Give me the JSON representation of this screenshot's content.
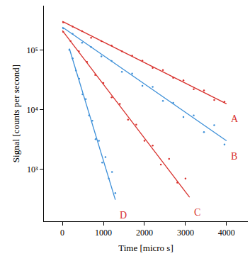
{
  "chart_data": {
    "type": "scatter",
    "x_label": "Time [micro s]",
    "y_label": "Signal [counts per second]",
    "log": "y",
    "grid": false,
    "xlim": [
      -450,
      4520
    ],
    "ylim": [
      135,
      550000
    ],
    "xticks": [
      0,
      1000,
      2000,
      3000,
      4000
    ],
    "yticks": [
      {
        "value": 1000,
        "label": "10³"
      },
      {
        "value": 10000,
        "label": "10⁴"
      },
      {
        "value": 100000,
        "label": "10⁵"
      }
    ],
    "series": [
      {
        "name": "A",
        "color": "#d8302c",
        "marker": "dot",
        "x": [
          20,
          250,
          480,
          700,
          950,
          1200,
          1450,
          1700,
          1950,
          2200,
          2450,
          2700,
          2950,
          3200,
          3450,
          3700,
          3950
        ],
        "values": [
          290000,
          245000,
          205000,
          160000,
          140000,
          118000,
          95000,
          80000,
          66000,
          50000,
          46000,
          34000,
          31000,
          22000,
          21000,
          14500,
          13500
        ],
        "fit": {
          "x": [
            0,
            4000
          ],
          "values": [
            300000,
            12500
          ]
        }
      },
      {
        "name": "B",
        "color": "#3c8fd8",
        "marker": "dot",
        "x": [
          20,
          250,
          480,
          700,
          950,
          1200,
          1450,
          1700,
          1950,
          2200,
          2450,
          2700,
          2950,
          3200,
          3450,
          3700,
          3950
        ],
        "values": [
          230000,
          185000,
          132000,
          112000,
          78000,
          65000,
          43000,
          40000,
          25000,
          24000,
          14000,
          13000,
          7500,
          8000,
          4200,
          5500,
          2600
        ],
        "fit": {
          "x": [
            0,
            4000
          ],
          "values": [
            240000,
            3000
          ]
        }
      },
      {
        "name": "C",
        "color": "#d8302c",
        "marker": "dot",
        "x": [
          20,
          200,
          400,
          600,
          800,
          1000,
          1200,
          1400,
          1600,
          1800,
          2000,
          2200,
          2400,
          2600,
          2800,
          3000
        ],
        "values": [
          200000,
          140000,
          95000,
          63000,
          38000,
          28000,
          16000,
          12500,
          6800,
          5600,
          3000,
          2500,
          1200,
          1500,
          600,
          700
        ],
        "fit": {
          "x": [
            0,
            3100
          ],
          "values": [
            210000,
            340
          ]
        }
      },
      {
        "name": "D",
        "color": "#3c8fd8",
        "marker": "dot",
        "x": [
          170,
          250,
          330,
          410,
          490,
          570,
          650,
          730,
          810,
          890,
          970,
          1050,
          1130,
          1210,
          1290
        ],
        "values": [
          100000,
          72000,
          45000,
          33000,
          18000,
          15000,
          8000,
          6500,
          3200,
          3000,
          1300,
          1600,
          700,
          900,
          400
        ],
        "fit": {
          "x": [
            170,
            1290
          ],
          "values": [
            105000,
            310
          ]
        }
      }
    ]
  }
}
